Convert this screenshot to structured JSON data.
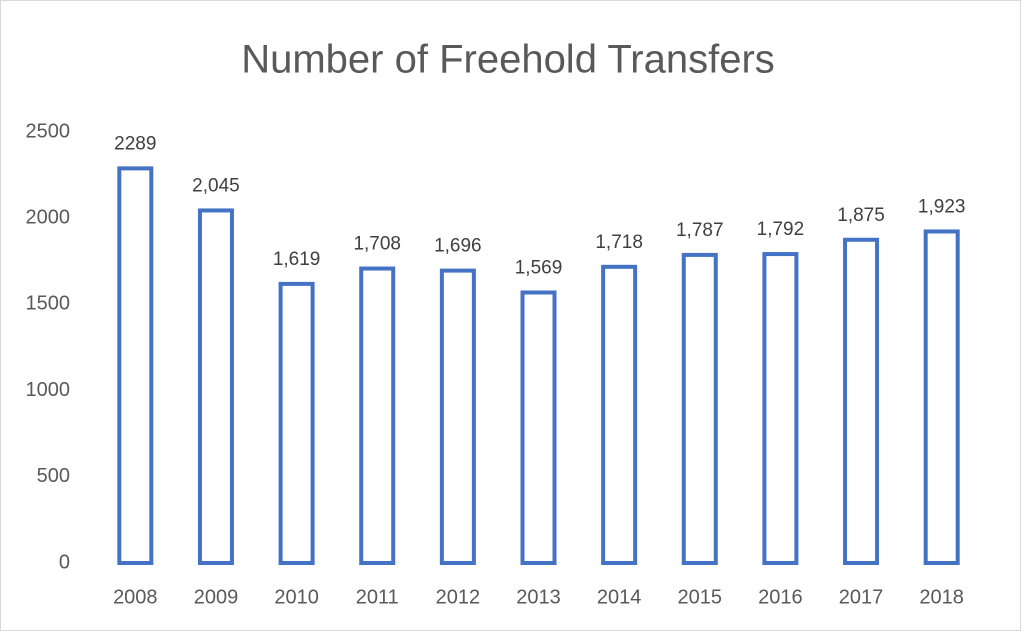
{
  "chart_data": {
    "type": "bar",
    "title": "Number of Freehold Transfers",
    "categories": [
      "2008",
      "2009",
      "2010",
      "2011",
      "2012",
      "2013",
      "2014",
      "2015",
      "2016",
      "2017",
      "2018"
    ],
    "values": [
      2289,
      2045,
      1619,
      1708,
      1696,
      1569,
      1718,
      1787,
      1792,
      1875,
      1923
    ],
    "value_labels": [
      "2289",
      "2,045",
      "1,619",
      "1,708",
      "1,696",
      "1,569",
      "1,718",
      "1,787",
      "1,792",
      "1,875",
      "1,923"
    ],
    "color": "#4472c4",
    "ylim": [
      0,
      2500
    ],
    "yticks": [
      0,
      500,
      1000,
      1500,
      2000,
      2500
    ],
    "grid": false
  }
}
